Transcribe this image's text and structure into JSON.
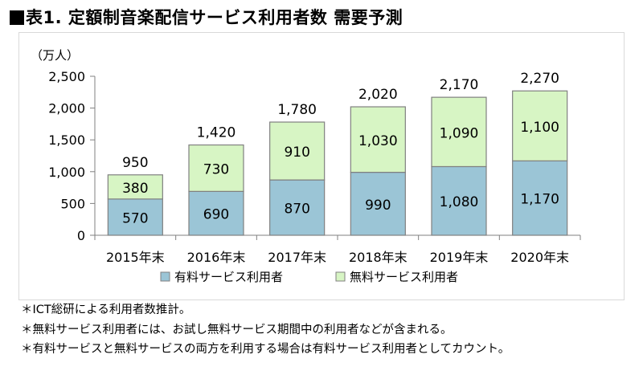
{
  "title": "表1. 定額制音楽配信サービス利用者数 需要予測",
  "chart_data": {
    "type": "bar",
    "stacked": true,
    "unit_label": "（万人）",
    "categories": [
      "2015年末",
      "2016年末",
      "2017年末",
      "2018年末",
      "2019年末",
      "2020年末"
    ],
    "series": [
      {
        "name": "有料サービス利用者",
        "values": [
          570,
          690,
          870,
          990,
          1080,
          1170
        ],
        "color": "#9bc5d6"
      },
      {
        "name": "無料サービス利用者",
        "values": [
          380,
          730,
          910,
          1030,
          1090,
          1100
        ],
        "color": "#d7f5c4"
      }
    ],
    "totals": [
      950,
      1420,
      1780,
      2020,
      2170,
      2270
    ],
    "ylim": [
      0,
      2500
    ],
    "yticks": [
      0,
      500,
      1000,
      1500,
      2000,
      2500
    ],
    "ytick_labels": [
      "0",
      "500",
      "1,000",
      "1,500",
      "2,000",
      "2,500"
    ],
    "legend_position": "bottom",
    "grid": false
  },
  "notes": [
    "＊ICT総研による利用者数推計。",
    "＊無料サービス利用者には、お試し無料サービス期間中の利用者などが含まれる。",
    "＊有料サービスと無料サービスの両方を利用する場合は有料サービス利用者としてカウント。"
  ]
}
